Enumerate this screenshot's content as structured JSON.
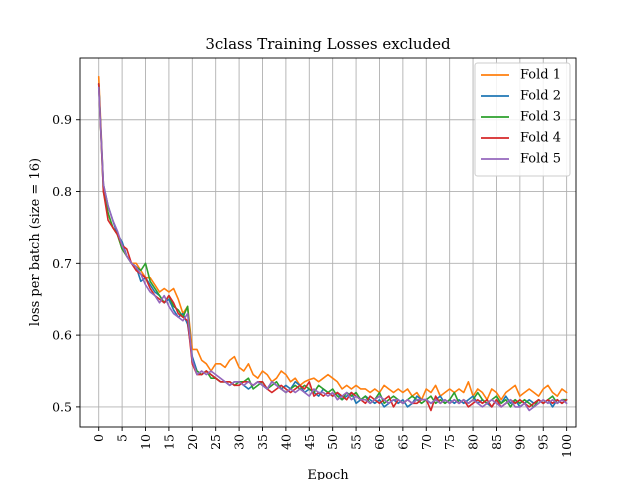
{
  "chart_data": {
    "type": "line",
    "title": "3class Training Losses excluded",
    "xlabel": "Epoch",
    "ylabel": "loss per batch (size = 16)",
    "xlim": [
      -4,
      102
    ],
    "ylim": [
      0.472,
      0.986
    ],
    "xticks": [
      0,
      5,
      10,
      15,
      20,
      25,
      30,
      35,
      40,
      45,
      50,
      55,
      60,
      65,
      70,
      75,
      80,
      85,
      90,
      95,
      100
    ],
    "yticks": [
      0.5,
      0.6,
      0.7,
      0.8,
      0.9
    ],
    "grid": true,
    "legend_position": "top-right",
    "x": [
      0,
      1,
      2,
      3,
      4,
      5,
      6,
      7,
      8,
      9,
      10,
      11,
      12,
      13,
      14,
      15,
      16,
      17,
      18,
      19,
      20,
      21,
      22,
      23,
      24,
      25,
      26,
      27,
      28,
      29,
      30,
      31,
      32,
      33,
      34,
      35,
      36,
      37,
      38,
      39,
      40,
      41,
      42,
      43,
      44,
      45,
      46,
      47,
      48,
      49,
      50,
      51,
      52,
      53,
      54,
      55,
      56,
      57,
      58,
      59,
      60,
      61,
      62,
      63,
      64,
      65,
      66,
      67,
      68,
      69,
      70,
      71,
      72,
      73,
      74,
      75,
      76,
      77,
      78,
      79,
      80,
      81,
      82,
      83,
      84,
      85,
      86,
      87,
      88,
      89,
      90,
      91,
      92,
      93,
      94,
      95,
      96,
      97,
      98,
      99,
      100
    ],
    "series": [
      {
        "name": "Fold 1",
        "color": "#ff7f0e",
        "values": [
          0.96,
          0.81,
          0.77,
          0.75,
          0.74,
          0.72,
          0.71,
          0.7,
          0.7,
          0.69,
          0.68,
          0.68,
          0.67,
          0.66,
          0.665,
          0.66,
          0.665,
          0.65,
          0.63,
          0.64,
          0.58,
          0.58,
          0.565,
          0.56,
          0.55,
          0.56,
          0.56,
          0.555,
          0.565,
          0.57,
          0.555,
          0.55,
          0.56,
          0.545,
          0.54,
          0.55,
          0.545,
          0.535,
          0.54,
          0.55,
          0.545,
          0.535,
          0.54,
          0.53,
          0.535,
          0.538,
          0.54,
          0.535,
          0.54,
          0.545,
          0.54,
          0.535,
          0.525,
          0.53,
          0.525,
          0.53,
          0.525,
          0.525,
          0.52,
          0.525,
          0.52,
          0.53,
          0.525,
          0.52,
          0.525,
          0.52,
          0.525,
          0.515,
          0.52,
          0.51,
          0.525,
          0.52,
          0.53,
          0.515,
          0.52,
          0.525,
          0.52,
          0.525,
          0.52,
          0.535,
          0.515,
          0.525,
          0.52,
          0.51,
          0.525,
          0.52,
          0.51,
          0.52,
          0.525,
          0.53,
          0.515,
          0.52,
          0.525,
          0.52,
          0.515,
          0.525,
          0.53,
          0.52,
          0.515,
          0.525,
          0.52
        ]
      },
      {
        "name": "Fold 2",
        "color": "#1f77b4",
        "values": [
          0.95,
          0.81,
          0.78,
          0.76,
          0.74,
          0.73,
          0.71,
          0.7,
          0.695,
          0.675,
          0.68,
          0.67,
          0.66,
          0.655,
          0.645,
          0.65,
          0.635,
          0.625,
          0.63,
          0.615,
          0.57,
          0.55,
          0.545,
          0.55,
          0.545,
          0.54,
          0.535,
          0.535,
          0.53,
          0.535,
          0.535,
          0.53,
          0.525,
          0.53,
          0.535,
          0.53,
          0.525,
          0.535,
          0.53,
          0.525,
          0.53,
          0.525,
          0.535,
          0.53,
          0.52,
          0.525,
          0.52,
          0.515,
          0.525,
          0.52,
          0.515,
          0.52,
          0.51,
          0.515,
          0.52,
          0.505,
          0.51,
          0.515,
          0.51,
          0.505,
          0.51,
          0.5,
          0.505,
          0.51,
          0.505,
          0.51,
          0.5,
          0.505,
          0.515,
          0.51,
          0.51,
          0.505,
          0.51,
          0.515,
          0.505,
          0.51,
          0.505,
          0.51,
          0.505,
          0.51,
          0.515,
          0.505,
          0.51,
          0.505,
          0.5,
          0.51,
          0.505,
          0.515,
          0.505,
          0.51,
          0.5,
          0.505,
          0.51,
          0.505,
          0.51,
          0.505,
          0.51,
          0.5,
          0.51,
          0.505,
          0.51
        ]
      },
      {
        "name": "Fold 3",
        "color": "#2ca02c",
        "values": [
          0.95,
          0.8,
          0.77,
          0.75,
          0.74,
          0.72,
          0.71,
          0.7,
          0.695,
          0.69,
          0.7,
          0.675,
          0.665,
          0.655,
          0.645,
          0.655,
          0.64,
          0.635,
          0.625,
          0.64,
          0.56,
          0.55,
          0.545,
          0.55,
          0.54,
          0.54,
          0.535,
          0.535,
          0.535,
          0.53,
          0.535,
          0.535,
          0.54,
          0.525,
          0.53,
          0.535,
          0.525,
          0.53,
          0.535,
          0.525,
          0.52,
          0.525,
          0.53,
          0.525,
          0.53,
          0.525,
          0.52,
          0.53,
          0.525,
          0.52,
          0.525,
          0.515,
          0.51,
          0.52,
          0.515,
          0.52,
          0.51,
          0.515,
          0.505,
          0.51,
          0.52,
          0.505,
          0.51,
          0.515,
          0.51,
          0.505,
          0.51,
          0.515,
          0.51,
          0.505,
          0.51,
          0.515,
          0.505,
          0.51,
          0.505,
          0.51,
          0.52,
          0.505,
          0.51,
          0.505,
          0.51,
          0.52,
          0.51,
          0.505,
          0.51,
          0.515,
          0.505,
          0.51,
          0.5,
          0.51,
          0.505,
          0.51,
          0.505,
          0.5,
          0.51,
          0.505,
          0.51,
          0.515,
          0.505,
          0.51,
          0.51
        ]
      },
      {
        "name": "Fold 4",
        "color": "#d62728",
        "values": [
          0.95,
          0.8,
          0.76,
          0.75,
          0.74,
          0.725,
          0.72,
          0.7,
          0.69,
          0.685,
          0.68,
          0.665,
          0.655,
          0.65,
          0.645,
          0.655,
          0.645,
          0.63,
          0.625,
          0.62,
          0.56,
          0.545,
          0.545,
          0.55,
          0.545,
          0.54,
          0.535,
          0.535,
          0.535,
          0.53,
          0.53,
          0.535,
          0.535,
          0.53,
          0.535,
          0.535,
          0.525,
          0.52,
          0.525,
          0.53,
          0.525,
          0.52,
          0.525,
          0.53,
          0.525,
          0.535,
          0.515,
          0.52,
          0.515,
          0.52,
          0.515,
          0.52,
          0.515,
          0.51,
          0.52,
          0.515,
          0.51,
          0.505,
          0.515,
          0.51,
          0.505,
          0.51,
          0.515,
          0.5,
          0.51,
          0.505,
          0.51,
          0.505,
          0.505,
          0.51,
          0.51,
          0.495,
          0.515,
          0.505,
          0.51,
          0.505,
          0.51,
          0.505,
          0.51,
          0.5,
          0.505,
          0.51,
          0.505,
          0.51,
          0.5,
          0.51,
          0.5,
          0.505,
          0.51,
          0.505,
          0.51,
          0.505,
          0.5,
          0.505,
          0.51,
          0.505,
          0.51,
          0.505,
          0.51,
          0.505,
          0.51
        ]
      },
      {
        "name": "Fold 5",
        "color": "#9467bd",
        "values": [
          0.945,
          0.81,
          0.78,
          0.76,
          0.745,
          0.725,
          0.71,
          0.7,
          0.695,
          0.685,
          0.67,
          0.66,
          0.655,
          0.645,
          0.655,
          0.64,
          0.63,
          0.625,
          0.62,
          0.63,
          0.565,
          0.545,
          0.55,
          0.545,
          0.55,
          0.545,
          0.54,
          0.535,
          0.53,
          0.535,
          0.535,
          0.53,
          0.535,
          0.53,
          0.535,
          0.53,
          0.525,
          0.535,
          0.53,
          0.525,
          0.52,
          0.525,
          0.52,
          0.525,
          0.52,
          0.515,
          0.525,
          0.52,
          0.52,
          0.515,
          0.52,
          0.51,
          0.515,
          0.52,
          0.51,
          0.515,
          0.51,
          0.51,
          0.505,
          0.51,
          0.515,
          0.51,
          0.505,
          0.51,
          0.51,
          0.505,
          0.51,
          0.505,
          0.51,
          0.51,
          0.51,
          0.505,
          0.51,
          0.505,
          0.51,
          0.505,
          0.51,
          0.505,
          0.51,
          0.505,
          0.51,
          0.505,
          0.5,
          0.505,
          0.51,
          0.505,
          0.5,
          0.505,
          0.51,
          0.5,
          0.5,
          0.505,
          0.495,
          0.5,
          0.505,
          0.51,
          0.505,
          0.51,
          0.505,
          0.51,
          0.505
        ]
      }
    ]
  }
}
